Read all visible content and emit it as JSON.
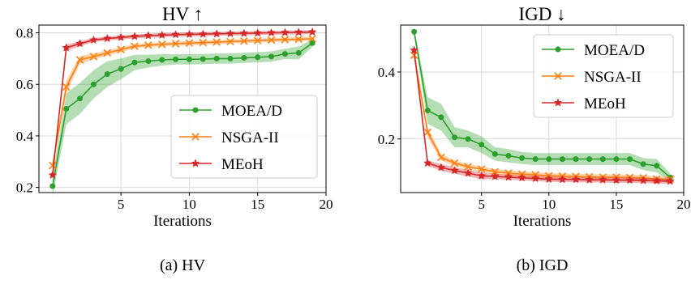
{
  "chart_data": [
    {
      "type": "line",
      "title": "HV ↑",
      "caption": "(a) HV",
      "xlabel": "Iterations",
      "ylabel": "",
      "xlim": [
        -1,
        20
      ],
      "ylim": [
        0.18,
        0.83
      ],
      "xticks": [
        5,
        10,
        15,
        20
      ],
      "yticks": [
        0.2,
        0.4,
        0.6,
        0.8
      ],
      "ytick_labels": [
        "0.2",
        "0.4",
        "0.6",
        "0.8"
      ],
      "grid": true,
      "legend_position": "lower-right",
      "x": [
        0,
        1,
        2,
        3,
        4,
        5,
        6,
        7,
        8,
        9,
        10,
        11,
        12,
        13,
        14,
        15,
        16,
        17,
        18,
        19
      ],
      "series": [
        {
          "name": "MOEA/D",
          "color": "#2ca02c",
          "marker": "circle",
          "values": [
            0.205,
            0.505,
            0.545,
            0.6,
            0.64,
            0.66,
            0.685,
            0.69,
            0.695,
            0.697,
            0.697,
            0.698,
            0.7,
            0.7,
            0.703,
            0.705,
            0.708,
            0.718,
            0.722,
            0.76
          ],
          "band": [
            0.04,
            0.06,
            0.06,
            0.055,
            0.05,
            0.04,
            0.03,
            0.025,
            0.022,
            0.02,
            0.02,
            0.02,
            0.02,
            0.02,
            0.02,
            0.02,
            0.02,
            0.02,
            0.025,
            0.015
          ]
        },
        {
          "name": "NSGA-II",
          "color": "#ff7f0e",
          "marker": "x",
          "values": [
            0.285,
            0.59,
            0.695,
            0.708,
            0.722,
            0.735,
            0.748,
            0.752,
            0.755,
            0.758,
            0.76,
            0.762,
            0.764,
            0.766,
            0.768,
            0.77,
            0.772,
            0.774,
            0.775,
            0.777
          ],
          "band": [
            0.015,
            0.025,
            0.015,
            0.012,
            0.01,
            0.01,
            0.008,
            0.008,
            0.008,
            0.008,
            0.008,
            0.008,
            0.008,
            0.008,
            0.008,
            0.008,
            0.008,
            0.008,
            0.008,
            0.008
          ]
        },
        {
          "name": "MEoH",
          "color": "#d62728",
          "marker": "star",
          "values": [
            0.248,
            0.742,
            0.758,
            0.772,
            0.778,
            0.782,
            0.786,
            0.789,
            0.791,
            0.793,
            0.794,
            0.795,
            0.796,
            0.797,
            0.798,
            0.799,
            0.8,
            0.801,
            0.802,
            0.803
          ],
          "band": [
            0.01,
            0.012,
            0.01,
            0.008,
            0.008,
            0.008,
            0.008,
            0.008,
            0.008,
            0.008,
            0.008,
            0.008,
            0.008,
            0.008,
            0.008,
            0.008,
            0.008,
            0.008,
            0.008,
            0.008
          ]
        }
      ]
    },
    {
      "type": "line",
      "title": "IGD ↓",
      "caption": "(b) IGD",
      "xlabel": "Iterations",
      "ylabel": "",
      "xlim": [
        -1,
        20
      ],
      "ylim": [
        0.04,
        0.54
      ],
      "xticks": [
        5,
        10,
        15,
        20
      ],
      "yticks": [
        0.2,
        0.4
      ],
      "ytick_labels": [
        "0.2",
        "0.4"
      ],
      "grid": true,
      "legend_position": "top-right",
      "x": [
        0,
        1,
        2,
        3,
        4,
        5,
        6,
        7,
        8,
        9,
        10,
        11,
        12,
        13,
        14,
        15,
        16,
        17,
        18,
        19
      ],
      "series": [
        {
          "name": "MOEA/D",
          "color": "#2ca02c",
          "marker": "circle",
          "values": [
            0.52,
            0.285,
            0.265,
            0.205,
            0.2,
            0.183,
            0.155,
            0.15,
            0.143,
            0.14,
            0.14,
            0.14,
            0.14,
            0.14,
            0.14,
            0.14,
            0.14,
            0.125,
            0.12,
            0.085
          ],
          "band": [
            0.01,
            0.04,
            0.04,
            0.03,
            0.025,
            0.025,
            0.02,
            0.02,
            0.018,
            0.018,
            0.018,
            0.018,
            0.018,
            0.018,
            0.018,
            0.018,
            0.018,
            0.018,
            0.02,
            0.012
          ]
        },
        {
          "name": "NSGA-II",
          "color": "#ff7f0e",
          "marker": "x",
          "values": [
            0.45,
            0.22,
            0.145,
            0.128,
            0.117,
            0.11,
            0.102,
            0.098,
            0.095,
            0.093,
            0.09,
            0.089,
            0.088,
            0.087,
            0.086,
            0.086,
            0.085,
            0.084,
            0.08,
            0.08
          ],
          "band": [
            0.01,
            0.015,
            0.01,
            0.008,
            0.008,
            0.008,
            0.008,
            0.008,
            0.008,
            0.008,
            0.008,
            0.008,
            0.008,
            0.008,
            0.008,
            0.008,
            0.008,
            0.008,
            0.008,
            0.008
          ]
        },
        {
          "name": "MEoH",
          "color": "#d62728",
          "marker": "star",
          "values": [
            0.465,
            0.128,
            0.115,
            0.106,
            0.098,
            0.09,
            0.088,
            0.086,
            0.084,
            0.082,
            0.08,
            0.079,
            0.079,
            0.078,
            0.078,
            0.077,
            0.077,
            0.076,
            0.075,
            0.074
          ],
          "band": [
            0.01,
            0.008,
            0.01,
            0.01,
            0.01,
            0.01,
            0.008,
            0.008,
            0.008,
            0.008,
            0.008,
            0.008,
            0.008,
            0.008,
            0.008,
            0.008,
            0.008,
            0.008,
            0.008,
            0.008
          ]
        }
      ]
    }
  ]
}
